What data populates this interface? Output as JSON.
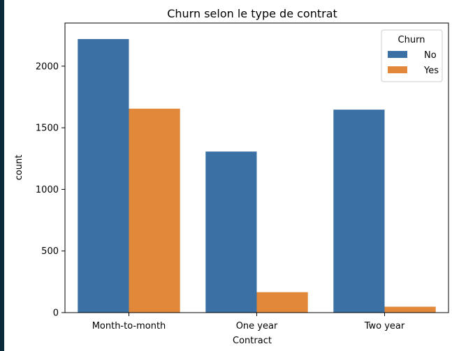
{
  "chart_data": {
    "type": "bar",
    "title": "Churn selon le type de contrat",
    "xlabel": "Contract",
    "ylabel": "count",
    "categories": [
      "Month-to-month",
      "One year",
      "Two year"
    ],
    "series": [
      {
        "name": "No",
        "color": "#3a70a3",
        "values": [
          2220,
          1307,
          1647
        ]
      },
      {
        "name": "Yes",
        "color": "#e1883b",
        "values": [
          1655,
          166,
          48
        ]
      }
    ],
    "ylim": [
      0,
      2350
    ],
    "yticks": [
      0,
      500,
      1000,
      1500,
      2000
    ],
    "grid": false,
    "legend": {
      "title": "Churn",
      "position": "top-right"
    }
  }
}
